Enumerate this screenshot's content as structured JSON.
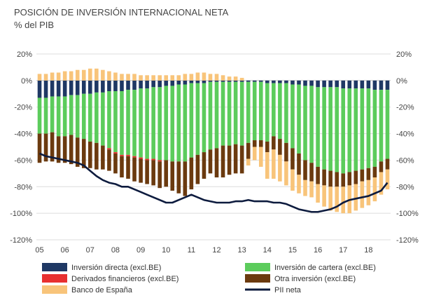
{
  "chart_data": {
    "type": "bar",
    "stacked": true,
    "title": "POSICIÓN DE INVERSIÓN INTERNACIONAL NETA",
    "subtitle": "% del PIB",
    "ylim": [
      -120,
      20
    ],
    "y_ticks": [
      20,
      0,
      -20,
      -40,
      -60,
      -80,
      -100,
      -120
    ],
    "y_tick_labels": [
      "20%",
      "0%",
      "-20%",
      "-40%",
      "-60%",
      "-80%",
      "-100%",
      "-120%"
    ],
    "x_tick_labels": [
      "05",
      "06",
      "07",
      "08",
      "09",
      "10",
      "11",
      "12",
      "13",
      "14",
      "15",
      "16",
      "17",
      "18"
    ],
    "x_start_year": 2005,
    "periods_per_year": 4,
    "grid": true,
    "legend_position": "bottom",
    "series": [
      {
        "name": "Inversión directa (excl.BE)",
        "color": "#1f3864",
        "values": [
          -13,
          -13,
          -12,
          -12,
          -12,
          -11,
          -11,
          -10,
          -10,
          -9,
          -9,
          -8,
          -8,
          -8,
          -7,
          -7,
          -6,
          -6,
          -5,
          -5,
          -4,
          -4,
          -3,
          -3,
          -2,
          -2,
          -2,
          -1,
          -1,
          -1,
          -1,
          -1,
          -1,
          -1,
          -1,
          -1,
          -2,
          -2,
          -2,
          -2,
          -3,
          -3,
          -4,
          -4,
          -5,
          -5,
          -5,
          -5,
          -6,
          -6,
          -6,
          -6,
          -6,
          -7,
          -7,
          -7
        ]
      },
      {
        "name": "Inversión de cartera (excl.BE)",
        "color": "#5ccc5c",
        "values": [
          -27,
          -27,
          -27,
          -30,
          -30,
          -30,
          -32,
          -34,
          -36,
          -38,
          -40,
          -43,
          -46,
          -48,
          -49,
          -50,
          -52,
          -53,
          -54,
          -55,
          -56,
          -57,
          -58,
          -58,
          -56,
          -54,
          -52,
          -51,
          -50,
          -48,
          -48,
          -47,
          -48,
          -46,
          -44,
          -44,
          -44,
          -40,
          -42,
          -45,
          -48,
          -52,
          -56,
          -58,
          -60,
          -62,
          -63,
          -64,
          -64,
          -63,
          -62,
          -61,
          -60,
          -58,
          -54,
          -52
        ]
      },
      {
        "name": "Derivados financieros (excl.BE)",
        "color": "#e83030",
        "values": [
          0,
          0,
          0,
          0,
          0,
          0,
          0,
          0,
          0,
          0,
          0,
          -1,
          -1,
          -1,
          -1,
          -1,
          -1,
          -1,
          -1,
          -1,
          0,
          0,
          0,
          0,
          0,
          0,
          0,
          0,
          0,
          0,
          0,
          0,
          0,
          0,
          0,
          0,
          0,
          0,
          0,
          0,
          0,
          0,
          0,
          0,
          0,
          0,
          0,
          0,
          0,
          0,
          0,
          0,
          0,
          0,
          0,
          0
        ]
      },
      {
        "name": "Otra inversión (excl.BE)",
        "color": "#6b3a0f",
        "values": [
          -22,
          -21,
          -22,
          -20,
          -20,
          -22,
          -22,
          -22,
          -20,
          -20,
          -18,
          -16,
          -15,
          -16,
          -17,
          -18,
          -18,
          -18,
          -19,
          -20,
          -20,
          -22,
          -24,
          -26,
          -24,
          -22,
          -20,
          -18,
          -22,
          -24,
          -22,
          -22,
          -21,
          -12,
          -5,
          -5,
          -8,
          -10,
          -12,
          -14,
          -16,
          -16,
          -15,
          -14,
          -13,
          -12,
          -12,
          -11,
          -10,
          -10,
          -10,
          -9,
          -9,
          -8,
          -8,
          -8
        ]
      },
      {
        "name": "Banco de España",
        "color": "#f8c47a",
        "values": [
          5,
          5,
          6,
          6,
          7,
          7,
          8,
          8,
          9,
          9,
          8,
          7,
          6,
          5,
          5,
          5,
          4,
          4,
          4,
          4,
          4,
          4,
          4,
          5,
          5,
          6,
          6,
          5,
          5,
          4,
          3,
          3,
          2,
          -5,
          -10,
          -15,
          -20,
          -22,
          -20,
          -18,
          -16,
          -14,
          -12,
          -12,
          -14,
          -16,
          -18,
          -19,
          -20,
          -21,
          -20,
          -20,
          -19,
          -18,
          -17,
          -15
        ]
      },
      {
        "name": "PII neta",
        "type": "line",
        "color": "#0d1b3e",
        "values": [
          -55,
          -57,
          -58,
          -59,
          -60,
          -61,
          -62,
          -64,
          -68,
          -72,
          -75,
          -77,
          -78,
          -80,
          -80,
          -82,
          -84,
          -86,
          -88,
          -90,
          -92,
          -92,
          -90,
          -88,
          -86,
          -88,
          -90,
          -91,
          -92,
          -92,
          -92,
          -91,
          -91,
          -90,
          -91,
          -91,
          -91,
          -92,
          -92,
          -93,
          -95,
          -97,
          -98,
          -99,
          -99,
          -98,
          -97,
          -95,
          -92,
          -90,
          -89,
          -88,
          -87,
          -85,
          -83,
          -77
        ]
      }
    ]
  }
}
